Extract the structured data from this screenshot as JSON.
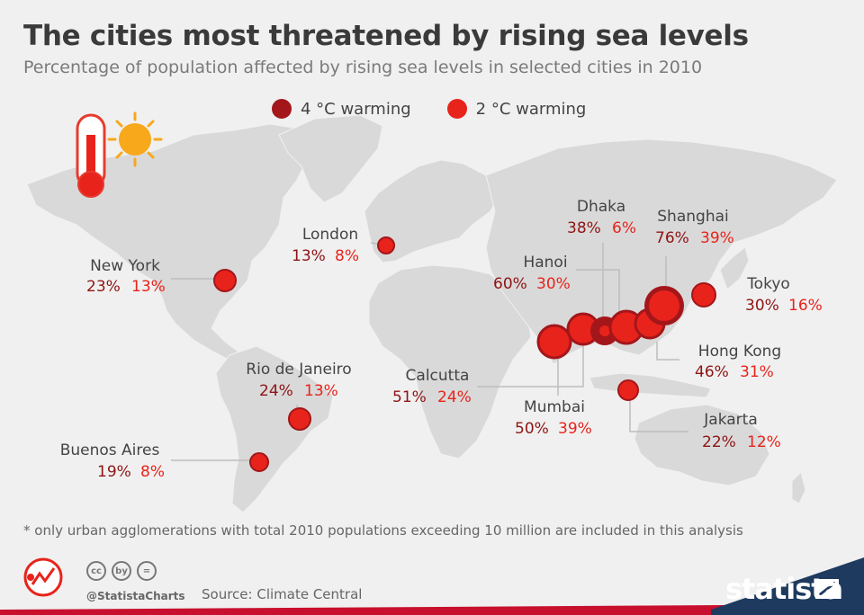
{
  "header": {
    "title": "The cities most threatened by rising sea levels",
    "subtitle": "Percentage of population affected by rising sea levels in selected cities in 2010"
  },
  "legend": {
    "series_4c": "4 °C warming",
    "series_2c": "2 °C warming",
    "color_4c": "#a3161a",
    "color_2c": "#e8231b"
  },
  "chart_data": {
    "type": "map-bubble",
    "series": [
      {
        "name": "4 °C warming",
        "color": "#a3161a"
      },
      {
        "name": "2 °C warming",
        "color": "#e8231b"
      }
    ],
    "cities": [
      {
        "name": "New York",
        "val4": "23%",
        "val2": "13%"
      },
      {
        "name": "London",
        "val4": "13%",
        "val2": "8%"
      },
      {
        "name": "Rio de Janeiro",
        "val4": "24%",
        "val2": "13%"
      },
      {
        "name": "Buenos Aires",
        "val4": "19%",
        "val2": "8%"
      },
      {
        "name": "Calcutta",
        "val4": "51%",
        "val2": "24%"
      },
      {
        "name": "Mumbai",
        "val4": "50%",
        "val2": "39%"
      },
      {
        "name": "Dhaka",
        "val4": "38%",
        "val2": "6%"
      },
      {
        "name": "Hanoi",
        "val4": "60%",
        "val2": "30%"
      },
      {
        "name": "Shanghai",
        "val4": "76%",
        "val2": "39%"
      },
      {
        "name": "Tokyo",
        "val4": "30%",
        "val2": "16%"
      },
      {
        "name": "Hong Kong",
        "val4": "46%",
        "val2": "31%"
      },
      {
        "name": "Jakarta",
        "val4": "22%",
        "val2": "12%"
      }
    ]
  },
  "footer": {
    "footnote": "* only urban agglomerations with total 2010 populations exceeding 10 million are included in this analysis",
    "handle": "@StatistaCharts",
    "source": "Source: Climate Central",
    "brand": "statista",
    "cc_icons": [
      "cc",
      "by",
      "="
    ]
  }
}
